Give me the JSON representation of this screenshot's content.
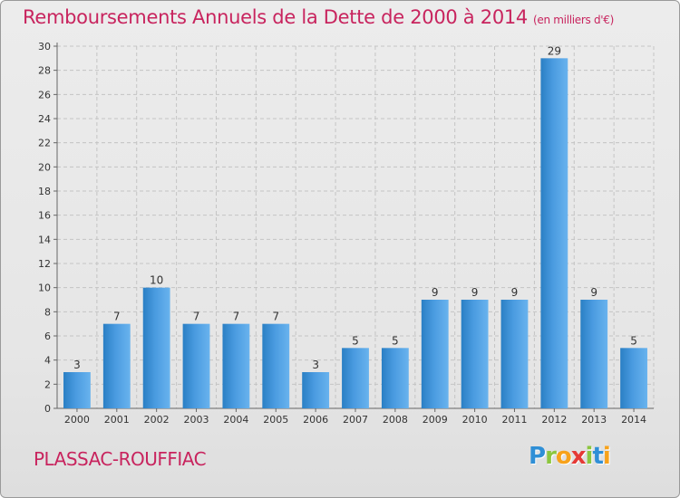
{
  "chart_data": {
    "type": "bar",
    "title": "Remboursements Annuels de la Dette de 2000 à 2014",
    "subtitle": "(en milliers d'€)",
    "categories": [
      "2000",
      "2001",
      "2002",
      "2003",
      "2004",
      "2005",
      "2006",
      "2007",
      "2008",
      "2009",
      "2010",
      "2011",
      "2012",
      "2013",
      "2014"
    ],
    "values": [
      3,
      7,
      10,
      7,
      7,
      7,
      3,
      5,
      5,
      9,
      9,
      9,
      29,
      9,
      5
    ],
    "ylim": [
      0,
      30
    ],
    "yticks": [
      0,
      2,
      4,
      6,
      8,
      10,
      12,
      14,
      16,
      18,
      20,
      22,
      24,
      26,
      28,
      30
    ],
    "grid": true,
    "bar_color": "#4a9be0"
  },
  "commune": "PLASSAC-ROUFFIAC",
  "logo": {
    "letters": [
      "P",
      "r",
      "o",
      "x",
      "i",
      "t",
      "i"
    ],
    "colors": [
      "#2f8fd6",
      "#8cc63f",
      "#f7a21b",
      "#e53935",
      "#8cc63f",
      "#2f8fd6",
      "#f7a21b"
    ]
  }
}
